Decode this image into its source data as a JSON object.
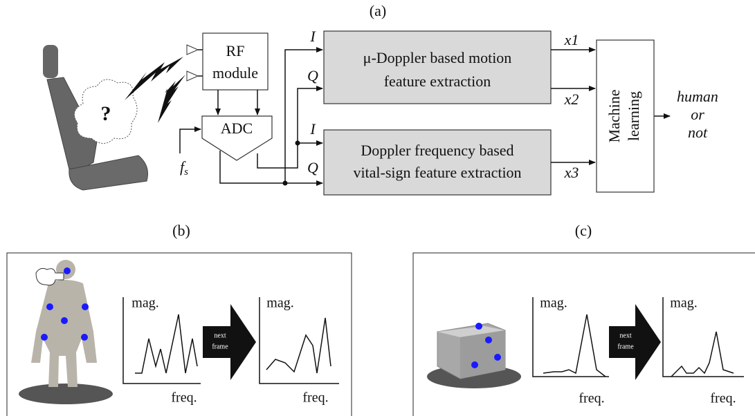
{
  "panel_a": {
    "label": "(a)",
    "unknown": "?",
    "rf_module": [
      "RF",
      "module"
    ],
    "adc": "ADC",
    "sampling": {
      "base": "f",
      "sub": "s"
    },
    "signals": [
      "I",
      "Q",
      "I",
      "Q"
    ],
    "motion_block": [
      "μ-Doppler based motion",
      "feature extraction"
    ],
    "vital_block": [
      "Doppler frequency based",
      "vital-sign feature extraction"
    ],
    "features": [
      "x1",
      "x2",
      "x3"
    ],
    "ml_block": [
      "Machine",
      "learning"
    ],
    "output": [
      "human",
      "or",
      "not"
    ]
  },
  "panel_b": {
    "label": "(b)",
    "plots": [
      {
        "y_label": "mag.",
        "x_label": "freq."
      },
      {
        "y_label": "mag.",
        "x_label": "freq."
      }
    ],
    "arrow": [
      "next",
      "frame"
    ]
  },
  "panel_c": {
    "label": "(c)",
    "plots": [
      {
        "y_label": "mag.",
        "x_label": "freq."
      },
      {
        "y_label": "mag.",
        "x_label": "freq."
      }
    ],
    "arrow": [
      "next",
      "frame"
    ]
  }
}
